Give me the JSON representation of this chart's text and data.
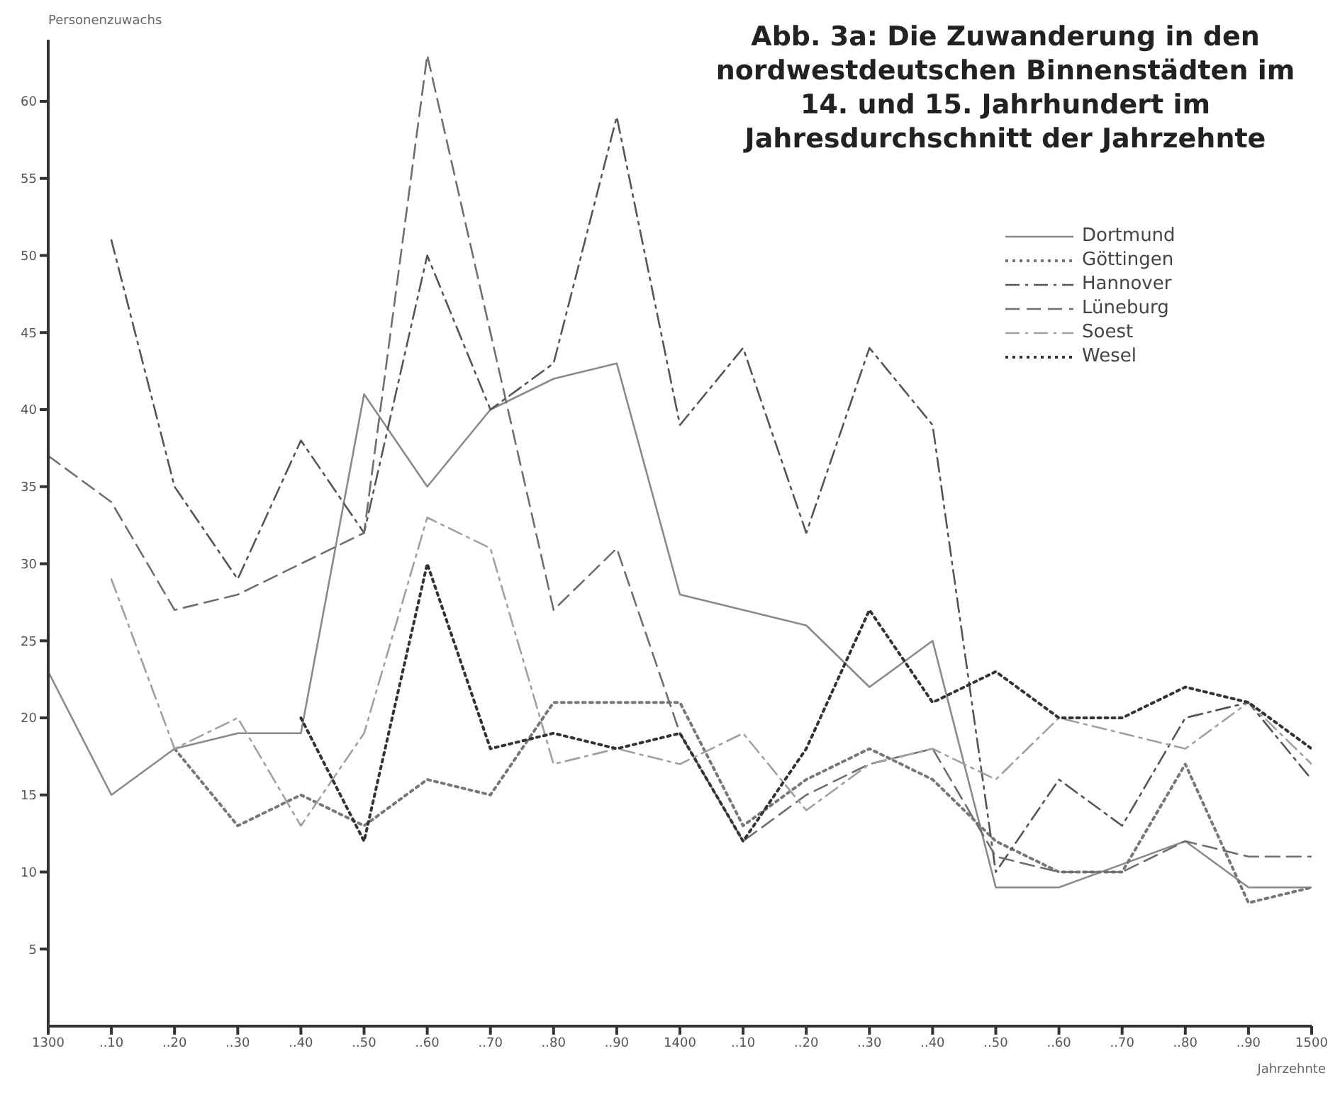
{
  "chart_data": {
    "type": "line",
    "title": "Abb. 3a: Die Zuwanderung in den nordwestdeutschen Binnenstädten im 14. und 15. Jahrhundert im Jahresdurchschnitt der Jahrzehnte",
    "xlabel": "Jahrzehnte",
    "ylabel": "Personenzuwachs",
    "categories": [
      "1300",
      "..10",
      "..20",
      "..30",
      "..40",
      "..50",
      "..60",
      "..70",
      "..80",
      "..90",
      "1400",
      "..10",
      "..20",
      "..30",
      "..40",
      "..50",
      "..60",
      "..70",
      "..80",
      "..90",
      "1500"
    ],
    "series": [
      {
        "name": "Dortmund",
        "color": "#8a8a8a",
        "line_style": "solid",
        "values": [
          23,
          15,
          18,
          19,
          19,
          41,
          35,
          40,
          42,
          43,
          28,
          27,
          26,
          22,
          25,
          9,
          9,
          10.5,
          12,
          9,
          9
        ]
      },
      {
        "name": "Göttingen",
        "color": "#777777",
        "line_style": "dotted",
        "values": [
          null,
          null,
          18,
          13,
          15,
          13,
          16,
          15,
          21,
          21,
          21,
          13,
          16,
          18,
          16,
          12,
          10,
          10,
          17,
          8,
          9
        ]
      },
      {
        "name": "Hannover",
        "color": "#555555",
        "line_style": "dashdot",
        "values": [
          null,
          51,
          35,
          29,
          38,
          32,
          50,
          40,
          43,
          59,
          39,
          44,
          32,
          44,
          39,
          10,
          16,
          13,
          20,
          21,
          16
        ]
      },
      {
        "name": "Lüneburg",
        "color": "#6e6e6e",
        "line_style": "dashed",
        "values": [
          37,
          34,
          27,
          28,
          30,
          32,
          63,
          45,
          27,
          31,
          19,
          12,
          15,
          17,
          18,
          11,
          10,
          10,
          12,
          11,
          11
        ]
      },
      {
        "name": "Soest",
        "color": "#a0a0a0",
        "line_style": "dashdot",
        "values": [
          null,
          29,
          18,
          20,
          13,
          19,
          33,
          31,
          17,
          18,
          17,
          19,
          14,
          17,
          18,
          16,
          20,
          19,
          18,
          21,
          17
        ]
      },
      {
        "name": "Wesel",
        "color": "#333333",
        "line_style": "dotted",
        "values": [
          null,
          null,
          null,
          null,
          20,
          12,
          30,
          18,
          19,
          18,
          19,
          12,
          18,
          27,
          21,
          23,
          20,
          20,
          22,
          21,
          18
        ]
      }
    ],
    "ylim": [
      0,
      64
    ],
    "yticks": [
      5,
      10,
      15,
      20,
      25,
      30,
      35,
      40,
      45,
      50,
      55,
      60
    ],
    "grid": false,
    "legend": "top right",
    "marker": "none"
  }
}
